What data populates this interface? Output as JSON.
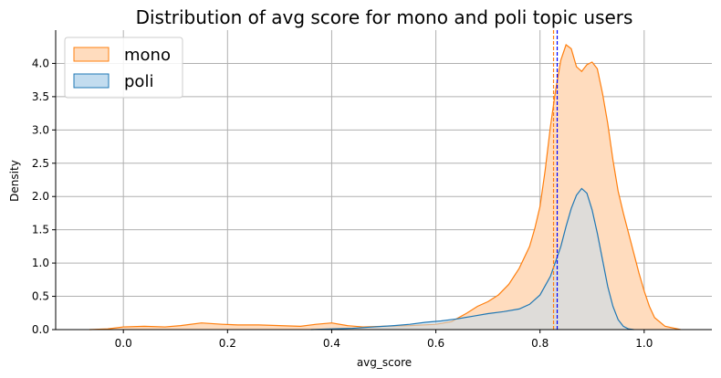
{
  "chart_data": {
    "type": "area",
    "title": "Distribution of avg score for mono and poli topic users",
    "xlabel": "avg_score",
    "ylabel": "Density",
    "xlim": [
      -0.13,
      1.13
    ],
    "ylim": [
      0,
      4.5
    ],
    "xticks": [
      0.0,
      0.2,
      0.4,
      0.6,
      0.8,
      1.0
    ],
    "xtick_labels": [
      "0.0",
      "0.2",
      "0.4",
      "0.6",
      "0.8",
      "1.0"
    ],
    "yticks": [
      0.0,
      0.5,
      1.0,
      1.5,
      2.0,
      2.5,
      3.0,
      3.5,
      4.0
    ],
    "ytick_labels": [
      "0.0",
      "0.5",
      "1.0",
      "1.5",
      "2.0",
      "2.5",
      "3.0",
      "3.5",
      "4.0"
    ],
    "grid": true,
    "legend_position": "top-left",
    "series": [
      {
        "name": "mono",
        "line_color": "#ff7f0e",
        "fill_color": "#ffdcbe",
        "x": [
          -0.065,
          -0.03,
          0.0,
          0.04,
          0.08,
          0.11,
          0.15,
          0.19,
          0.22,
          0.26,
          0.3,
          0.34,
          0.37,
          0.4,
          0.43,
          0.46,
          0.5,
          0.55,
          0.6,
          0.63,
          0.66,
          0.68,
          0.7,
          0.72,
          0.74,
          0.76,
          0.78,
          0.79,
          0.8,
          0.81,
          0.82,
          0.83,
          0.84,
          0.85,
          0.86,
          0.87,
          0.88,
          0.89,
          0.9,
          0.91,
          0.92,
          0.93,
          0.94,
          0.95,
          0.96,
          0.97,
          0.98,
          0.99,
          1.0,
          1.01,
          1.02,
          1.04,
          1.07
        ],
        "y": [
          0.0,
          0.01,
          0.04,
          0.05,
          0.04,
          0.06,
          0.1,
          0.08,
          0.07,
          0.07,
          0.06,
          0.05,
          0.08,
          0.1,
          0.06,
          0.04,
          0.05,
          0.06,
          0.08,
          0.12,
          0.25,
          0.35,
          0.42,
          0.52,
          0.68,
          0.92,
          1.25,
          1.52,
          1.85,
          2.4,
          3.05,
          3.6,
          4.05,
          4.28,
          4.22,
          3.95,
          3.88,
          3.98,
          4.02,
          3.92,
          3.55,
          3.1,
          2.55,
          2.08,
          1.75,
          1.45,
          1.15,
          0.85,
          0.58,
          0.35,
          0.18,
          0.05,
          0.0
        ]
      },
      {
        "name": "poli",
        "line_color": "#1f77b4",
        "fill_color": "#c2dcef",
        "x": [
          0.36,
          0.4,
          0.44,
          0.48,
          0.52,
          0.55,
          0.58,
          0.61,
          0.64,
          0.67,
          0.7,
          0.73,
          0.76,
          0.78,
          0.8,
          0.82,
          0.84,
          0.85,
          0.86,
          0.87,
          0.88,
          0.89,
          0.9,
          0.91,
          0.92,
          0.93,
          0.94,
          0.95,
          0.96,
          0.97,
          0.98
        ],
        "y": [
          0.0,
          0.01,
          0.02,
          0.04,
          0.06,
          0.08,
          0.11,
          0.13,
          0.16,
          0.2,
          0.24,
          0.27,
          0.31,
          0.38,
          0.52,
          0.8,
          1.25,
          1.55,
          1.82,
          2.02,
          2.12,
          2.05,
          1.8,
          1.45,
          1.05,
          0.65,
          0.35,
          0.15,
          0.05,
          0.01,
          0.0
        ]
      }
    ],
    "vlines": [
      {
        "x": 0.826,
        "color": "#ff7f0e",
        "style": "dashed"
      },
      {
        "x": 0.833,
        "color": "#0000ff",
        "style": "dashed"
      }
    ]
  }
}
